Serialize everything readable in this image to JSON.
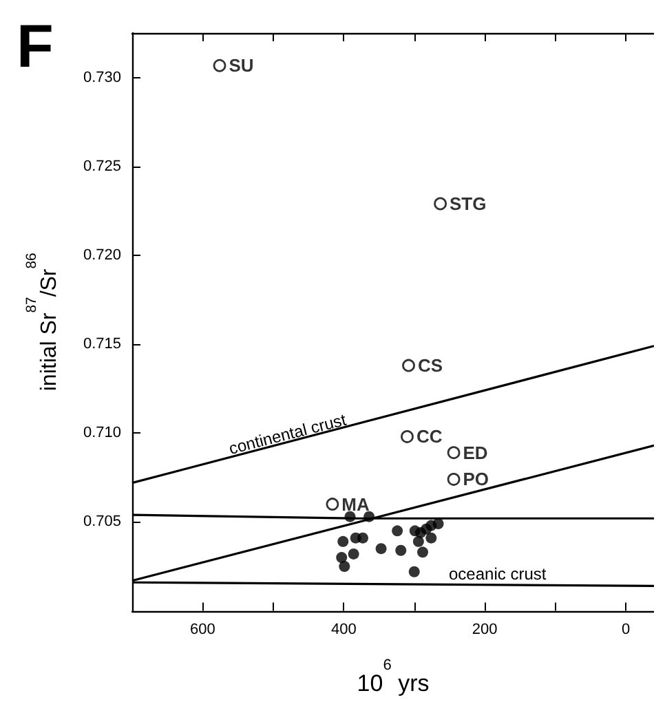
{
  "chart_data": {
    "type": "scatter",
    "xlabel": "10$^{6}$ yrs",
    "ylabel": "initial Sr$^{87}$/Sr$^{86}$",
    "xlim": [
      700,
      -40
    ],
    "ylim": [
      0.7,
      0.7325
    ],
    "xticks": [
      600,
      {
        "value": 500,
        "label": null
      },
      400,
      {
        "value": 300,
        "label": null
      },
      200,
      {
        "value": 100,
        "label": null
      },
      0
    ],
    "yticks": [
      {
        "value": 0.705,
        "label": "0.705"
      },
      {
        "value": 0.71,
        "label": "0.710"
      },
      {
        "value": 0.715,
        "label": "0.715"
      },
      {
        "value": 0.72,
        "label": "0.720"
      },
      {
        "value": 0.725,
        "label": "0.725"
      },
      {
        "value": 0.73,
        "label": "0.730"
      }
    ],
    "grid": false,
    "marker": "circle",
    "annotations": [
      "F",
      "continental crust",
      "oceanic crust"
    ],
    "series": [
      {
        "color": "#000000",
        "x": [
          576,
          263,
          308,
          310,
          244,
          244,
          416
        ],
        "values": [
          0.73067,
          0.7229,
          0.7138,
          0.7098,
          0.7089,
          0.7074,
          0.706
        ],
        "value_labels": [
          "SU",
          "STG",
          "CS",
          "CC",
          "ED",
          "PO",
          "MA"
        ]
      },
      {
        "color": "#000000",
        "x": [
          391,
          364,
          383,
          373,
          401,
          403,
          386,
          399,
          347,
          324,
          319,
          299,
          291,
          283,
          276,
          266,
          294,
          276,
          288,
          300
        ],
        "values": [
          0.7053,
          0.7053,
          0.7041,
          0.7041,
          0.7039,
          0.703,
          0.7032,
          0.7025,
          0.7035,
          0.7045,
          0.7034,
          0.7045,
          0.7044,
          0.7046,
          0.7048,
          0.7049,
          0.7039,
          0.7041,
          0.7033,
          0.7022
        ]
      },
      {
        "type": "line",
        "color": "#000000",
        "marker": "none",
        "x": [
          700,
          -40
        ],
        "values": [
          0.7072,
          0.7149
        ]
      },
      {
        "type": "line",
        "color": "#000000",
        "marker": "none",
        "x": [
          700,
          -40
        ],
        "values": [
          0.7017,
          0.7093
        ]
      },
      {
        "type": "line",
        "color": "#000000",
        "marker": "none",
        "x": [
          700,
          380,
          -40
        ],
        "values": [
          0.7054,
          0.7052,
          0.7052
        ]
      },
      {
        "type": "line",
        "color": "#000000",
        "marker": "none",
        "x": [
          700,
          -40
        ],
        "values": [
          0.7016,
          0.7014
        ]
      }
    ]
  }
}
